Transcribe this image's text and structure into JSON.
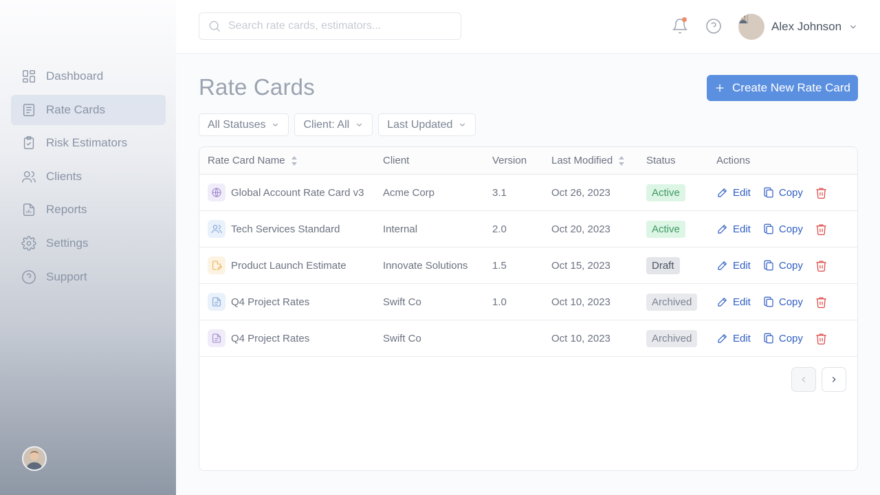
{
  "sidebar": {
    "items": [
      {
        "label": "Dashboard",
        "icon": "dashboard-icon",
        "active": false
      },
      {
        "label": "Rate Cards",
        "icon": "rate-cards-icon",
        "active": true
      },
      {
        "label": "Risk Estimators",
        "icon": "clipboard-check-icon",
        "active": false
      },
      {
        "label": "Clients",
        "icon": "users-icon",
        "active": false
      },
      {
        "label": "Reports",
        "icon": "report-icon",
        "active": false
      },
      {
        "label": "Settings",
        "icon": "gear-icon",
        "active": false
      },
      {
        "label": "Support",
        "icon": "help-circle-icon",
        "active": false
      }
    ]
  },
  "header": {
    "search_placeholder": "Search rate cards, estimators...",
    "user_name": "Alex Johnson"
  },
  "page": {
    "title": "Rate Cards",
    "create_label": "Create New Rate Card"
  },
  "filters": {
    "status": "All Statuses",
    "client": "Client: All",
    "sort": "Last Updated"
  },
  "table": {
    "columns": {
      "name": "Rate Card Name",
      "client": "Client",
      "version": "Version",
      "modified": "Last Modified",
      "status": "Status",
      "actions": "Actions"
    },
    "edit_label": "Edit",
    "copy_label": "Copy",
    "rows": [
      {
        "name": "Global Account Rate Card v3",
        "client": "Acme Corp",
        "version": "3.1",
        "modified": "Oct 26, 2023",
        "status": "Active",
        "icon": "globe-icon"
      },
      {
        "name": "Tech Services Standard",
        "client": "Internal",
        "version": "2.0",
        "modified": "Oct 20, 2023",
        "status": "Active",
        "icon": "users-icon"
      },
      {
        "name": "Product Launch Estimate",
        "client": "Innovate Solutions",
        "version": "1.5",
        "modified": "Oct 15, 2023",
        "status": "Draft",
        "icon": "edit-document-icon"
      },
      {
        "name": "Q4 Project Rates",
        "client": "Swift Co",
        "version": "1.0",
        "modified": "Oct 10, 2023",
        "status": "Archived",
        "icon": "document-icon"
      },
      {
        "name": "Q4 Project Rates",
        "client": "Swift Co",
        "version": "",
        "modified": "Oct 10, 2023",
        "status": "Archived",
        "icon": "document-icon"
      }
    ]
  },
  "colors": {
    "accent": "#5b8fe0",
    "link": "#2f5ec4",
    "danger": "#dc4a48",
    "active_bg": "#dcf5e5",
    "active_text": "#3f9a63"
  }
}
